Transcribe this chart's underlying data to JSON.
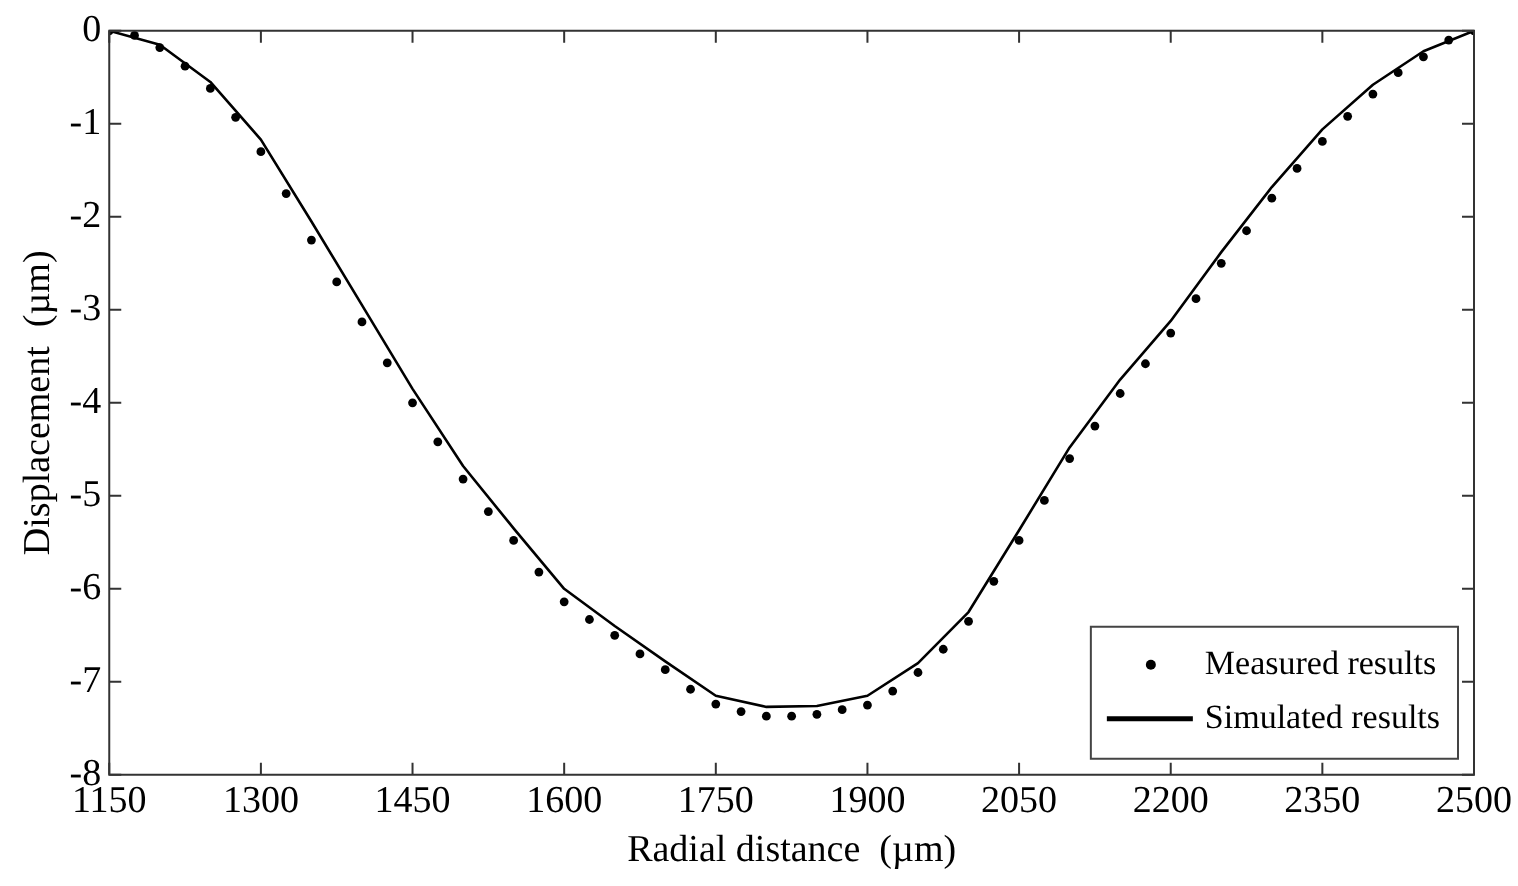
{
  "chart_data": {
    "type": "scatter",
    "xlabel": "Radial distance  (µm)",
    "ylabel": "Displacement  (µm)",
    "xlim": [
      1150,
      2500
    ],
    "xticks": [
      1150,
      1300,
      1450,
      1600,
      1750,
      1900,
      2050,
      2200,
      2350,
      2500
    ],
    "ylim": [
      -8,
      0
    ],
    "yticks": [
      -8,
      -7,
      -6,
      -5,
      -4,
      -3,
      -2,
      -1,
      0
    ],
    "grid": false,
    "legend": "bottom right",
    "series": [
      {
        "name": "Measured results",
        "marker": "circle",
        "color": "#000000",
        "x": [
          1150,
          1175,
          1200,
          1225,
          1250,
          1275,
          1300,
          1325,
          1350,
          1375,
          1400,
          1425,
          1450,
          1475,
          1500,
          1525,
          1550,
          1575,
          1600,
          1625,
          1650,
          1675,
          1700,
          1725,
          1750,
          1775,
          1800,
          1825,
          1850,
          1875,
          1900,
          1925,
          1950,
          1975,
          2000,
          2025,
          2050,
          2075,
          2100,
          2125,
          2150,
          2175,
          2200,
          2225,
          2250,
          2275,
          2300,
          2325,
          2350,
          2375,
          2400,
          2425,
          2450,
          2475,
          2500
        ],
        "values": [
          0,
          -0.05,
          -0.18,
          -0.38,
          -0.62,
          -0.93,
          -1.3,
          -1.75,
          -2.25,
          -2.7,
          -3.13,
          -3.57,
          -4.0,
          -4.42,
          -4.82,
          -5.17,
          -5.48,
          -5.82,
          -6.14,
          -6.33,
          -6.5,
          -6.7,
          -6.87,
          -7.08,
          -7.24,
          -7.32,
          -7.37,
          -7.37,
          -7.35,
          -7.3,
          -7.25,
          -7.1,
          -6.9,
          -6.65,
          -6.35,
          -5.92,
          -5.48,
          -5.05,
          -4.6,
          -4.25,
          -3.9,
          -3.58,
          -3.25,
          -2.88,
          -2.5,
          -2.15,
          -1.8,
          -1.48,
          -1.19,
          -0.92,
          -0.68,
          -0.45,
          -0.28,
          -0.1,
          0
        ]
      },
      {
        "name": "Simulated results",
        "type": "line",
        "marker": "none",
        "line_style": "solid",
        "color": "#000000",
        "x": [
          1150,
          1200,
          1250,
          1300,
          1350,
          1400,
          1450,
          1500,
          1550,
          1600,
          1650,
          1700,
          1750,
          1800,
          1850,
          1900,
          1950,
          2000,
          2050,
          2100,
          2150,
          2200,
          2250,
          2300,
          2350,
          2400,
          2450,
          2500
        ],
        "values": [
          0,
          -0.15,
          -0.55,
          -1.17,
          -2.05,
          -2.95,
          -3.85,
          -4.68,
          -5.35,
          -6.0,
          -6.4,
          -6.78,
          -7.15,
          -7.27,
          -7.26,
          -7.15,
          -6.8,
          -6.25,
          -5.37,
          -4.48,
          -3.75,
          -3.12,
          -2.38,
          -1.68,
          -1.06,
          -0.58,
          -0.22,
          0
        ]
      }
    ]
  }
}
